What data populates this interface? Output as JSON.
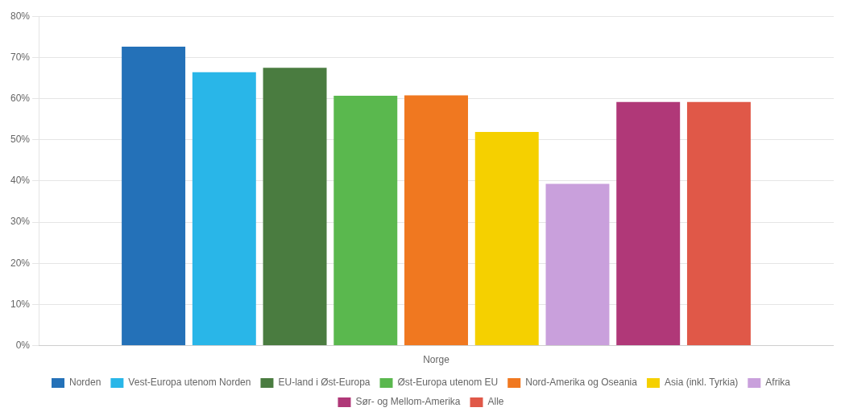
{
  "chart_data": {
    "type": "bar",
    "categories": [
      "Norge"
    ],
    "series": [
      {
        "name": "Norden",
        "color": "#2471b8",
        "values": [
          0.726
        ]
      },
      {
        "name": "Vest-Europa utenom Norden",
        "color": "#29b6e8",
        "values": [
          0.664
        ]
      },
      {
        "name": "EU-land i Øst-Europa",
        "color": "#4a7c40",
        "values": [
          0.675
        ]
      },
      {
        "name": "Øst-Europa utenom EU",
        "color": "#5ab84e",
        "values": [
          0.607
        ]
      },
      {
        "name": "Nord-Amerika og Oseania",
        "color": "#f07820",
        "values": [
          0.608
        ]
      },
      {
        "name": "Asia (inkl. Tyrkia)",
        "color": "#f5d000",
        "values": [
          0.519
        ]
      },
      {
        "name": "Afrika",
        "color": "#c9a0dc",
        "values": [
          0.393
        ]
      },
      {
        "name": "Sør- og Mellom-Amerika",
        "color": "#b03878",
        "values": [
          0.592
        ]
      },
      {
        "name": "Alle",
        "color": "#e05848",
        "values": [
          0.592
        ]
      }
    ],
    "ylim": [
      0,
      0.8
    ],
    "yticks": [
      {
        "value": 0.0,
        "label": "0%"
      },
      {
        "value": 0.1,
        "label": "10%"
      },
      {
        "value": 0.2,
        "label": "20%"
      },
      {
        "value": 0.3,
        "label": "30%"
      },
      {
        "value": 0.4,
        "label": "40%"
      },
      {
        "value": 0.5,
        "label": "50%"
      },
      {
        "value": 0.6,
        "label": "60%"
      },
      {
        "value": 0.7,
        "label": "70%"
      },
      {
        "value": 0.8,
        "label": "80%"
      }
    ],
    "grid": true,
    "legend": "bottom"
  }
}
